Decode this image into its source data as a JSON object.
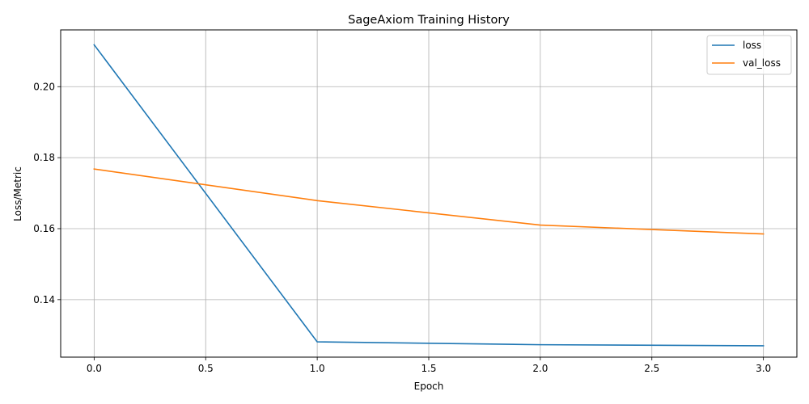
{
  "chart_data": {
    "type": "line",
    "title": "SageAxiom Training History",
    "xlabel": "Epoch",
    "ylabel": "Loss/Metric",
    "x": [
      0,
      1,
      2,
      3
    ],
    "series": [
      {
        "name": "loss",
        "values": [
          0.2118,
          0.1281,
          0.1273,
          0.127
        ],
        "color": "#1f77b4"
      },
      {
        "name": "val_loss",
        "values": [
          0.1768,
          0.1679,
          0.161,
          0.1585
        ],
        "color": "#ff7f0e"
      }
    ],
    "xlim": [
      -0.15,
      3.15
    ],
    "ylim": [
      0.1238,
      0.216
    ],
    "xticks": [
      0.0,
      0.5,
      1.0,
      1.5,
      2.0,
      2.5,
      3.0
    ],
    "xtick_labels": [
      "0.0",
      "0.5",
      "1.0",
      "1.5",
      "2.0",
      "2.5",
      "3.0"
    ],
    "yticks": [
      0.14,
      0.16,
      0.18,
      0.2
    ],
    "ytick_labels": [
      "0.14",
      "0.16",
      "0.18",
      "0.20"
    ],
    "grid": true,
    "legend_position": "top-right",
    "grid_color": "#b0b0b0"
  }
}
